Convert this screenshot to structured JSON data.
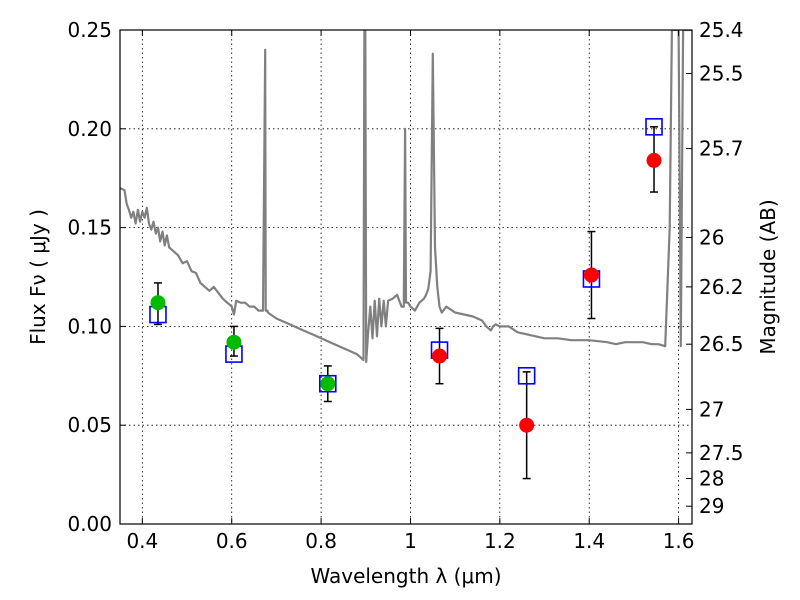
{
  "chart_data": {
    "type": "scatter",
    "title": "",
    "xlabel": "Wavelength  λ (μm)",
    "ylabel": "Flux  Fν  ( μJy )",
    "ylabel_right": "Magnitude (AB)",
    "xlim": [
      0.35,
      1.63
    ],
    "ylim": [
      0.0,
      0.25
    ],
    "grid": true,
    "x_ticks": [
      0.4,
      0.6,
      0.8,
      1.0,
      1.2,
      1.4,
      1.6
    ],
    "x_tick_labels": [
      "0.4",
      "0.6",
      "0.8",
      "1",
      "1.2",
      "1.4",
      "1.6"
    ],
    "y_ticks": [
      0.0,
      0.05,
      0.1,
      0.15,
      0.2,
      0.25
    ],
    "y_tick_labels": [
      "0.00",
      "0.05",
      "0.10",
      "0.15",
      "0.20",
      "0.25"
    ],
    "right_ticks": [
      {
        "flux": 0.25,
        "label": "25.4"
      },
      {
        "flux": 0.228,
        "label": "25.5"
      },
      {
        "flux": 0.19,
        "label": "25.7"
      },
      {
        "flux": 0.145,
        "label": "26"
      },
      {
        "flux": 0.12,
        "label": "26.2"
      },
      {
        "flux": 0.091,
        "label": "26.5"
      },
      {
        "flux": 0.058,
        "label": "27"
      },
      {
        "flux": 0.036,
        "label": "27.5"
      },
      {
        "flux": 0.023,
        "label": "28"
      },
      {
        "flux": 0.009,
        "label": "29"
      }
    ],
    "series": [
      {
        "kind": "model",
        "color": "#808080",
        "x": [
          0.35,
          0.36,
          0.365,
          0.37,
          0.375,
          0.38,
          0.385,
          0.39,
          0.395,
          0.4,
          0.405,
          0.41,
          0.415,
          0.42,
          0.425,
          0.43,
          0.435,
          0.44,
          0.445,
          0.45,
          0.455,
          0.46,
          0.47,
          0.48,
          0.49,
          0.5,
          0.51,
          0.52,
          0.53,
          0.54,
          0.55,
          0.56,
          0.57,
          0.58,
          0.59,
          0.6,
          0.605,
          0.61,
          0.62,
          0.63,
          0.64,
          0.65,
          0.66,
          0.67,
          0.675,
          0.676,
          0.68,
          0.681,
          0.7,
          0.72,
          0.74,
          0.76,
          0.78,
          0.8,
          0.82,
          0.84,
          0.86,
          0.88,
          0.895,
          0.897,
          0.899,
          0.901,
          0.905,
          0.91,
          0.915,
          0.92,
          0.925,
          0.93,
          0.935,
          0.94,
          0.945,
          0.95,
          0.96,
          0.97,
          0.98,
          0.985,
          0.988,
          0.99,
          0.995,
          1.0,
          1.01,
          1.02,
          1.03,
          1.035,
          1.04,
          1.045,
          1.05,
          1.055,
          1.06,
          1.065,
          1.07,
          1.08,
          1.1,
          1.12,
          1.14,
          1.16,
          1.17,
          1.18,
          1.185,
          1.19,
          1.2,
          1.22,
          1.24,
          1.26,
          1.28,
          1.3,
          1.33,
          1.36,
          1.4,
          1.44,
          1.46,
          1.48,
          1.5,
          1.52,
          1.54,
          1.555,
          1.57,
          1.58,
          1.585,
          1.59,
          1.595,
          1.6,
          1.605,
          1.61,
          1.615,
          1.63
        ],
        "y": [
          0.17,
          0.169,
          0.162,
          0.159,
          0.155,
          0.158,
          0.152,
          0.159,
          0.153,
          0.158,
          0.155,
          0.16,
          0.152,
          0.149,
          0.153,
          0.147,
          0.15,
          0.143,
          0.148,
          0.141,
          0.146,
          0.14,
          0.138,
          0.136,
          0.132,
          0.133,
          0.128,
          0.127,
          0.122,
          0.12,
          0.118,
          0.12,
          0.117,
          0.114,
          0.112,
          0.11,
          0.106,
          0.113,
          0.112,
          0.112,
          0.11,
          0.11,
          0.108,
          0.108,
          0.24,
          0.108,
          0.108,
          0.107,
          0.104,
          0.102,
          0.1,
          0.098,
          0.096,
          0.094,
          0.092,
          0.09,
          0.088,
          0.086,
          0.083,
          0.25,
          0.25,
          0.082,
          0.096,
          0.11,
          0.094,
          0.113,
          0.095,
          0.114,
          0.1,
          0.113,
          0.1,
          0.113,
          0.114,
          0.116,
          0.11,
          0.11,
          0.2,
          0.112,
          0.112,
          0.11,
          0.108,
          0.112,
          0.114,
          0.116,
          0.119,
          0.128,
          0.238,
          0.14,
          0.12,
          0.11,
          0.107,
          0.11,
          0.107,
          0.106,
          0.105,
          0.103,
          0.1,
          0.098,
          0.1,
          0.101,
          0.1,
          0.1,
          0.097,
          0.096,
          0.095,
          0.094,
          0.094,
          0.093,
          0.093,
          0.092,
          0.091,
          0.092,
          0.092,
          0.092,
          0.091,
          0.091,
          0.09,
          0.15,
          0.25,
          0.25,
          0.25,
          0.25,
          0.09,
          0.25,
          0.25,
          0.25
        ]
      },
      {
        "kind": "model-flux",
        "marker": "open-square",
        "color": "#0000ff",
        "x": [
          0.435,
          0.605,
          0.815,
          1.065,
          1.26,
          1.405,
          1.545
        ],
        "y": [
          0.106,
          0.086,
          0.071,
          0.088,
          0.075,
          0.124,
          0.201
        ]
      },
      {
        "kind": "observed",
        "marker": "filled-circle",
        "x": [
          0.435,
          0.605,
          0.815,
          1.065,
          1.26,
          1.405,
          1.545
        ],
        "y": [
          0.112,
          0.092,
          0.071,
          0.085,
          0.05,
          0.126,
          0.184
        ],
        "err_lo": [
          0.011,
          0.007,
          0.009,
          0.014,
          0.027,
          0.022,
          0.016
        ],
        "err_hi": [
          0.01,
          0.008,
          0.009,
          0.014,
          0.027,
          0.022,
          0.017
        ],
        "colors": [
          "#00bb00",
          "#00bb00",
          "#00bb00",
          "#ff0000",
          "#ff0000",
          "#ff0000",
          "#ff0000"
        ]
      }
    ]
  }
}
